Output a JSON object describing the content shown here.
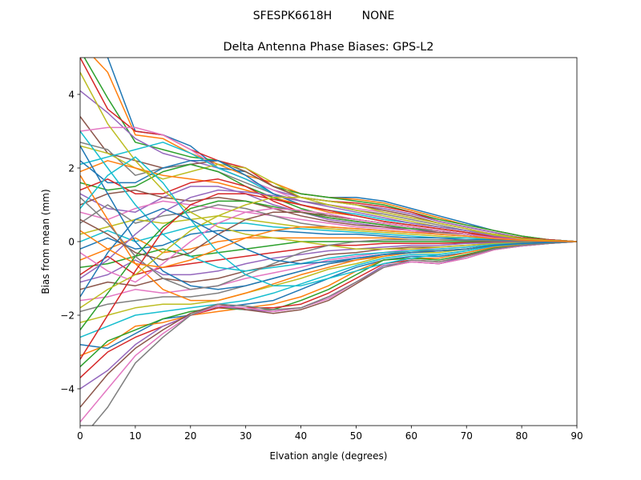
{
  "figure": {
    "suptitle_left": "SFESPK6618H",
    "suptitle_right": "NONE"
  },
  "chart_data": {
    "type": "line",
    "title": "Delta Antenna Phase Biases: GPS-L2",
    "xlabel": "Elvation angle (degrees)",
    "ylabel": "Bias from mean (mm)",
    "xlim": [
      0,
      90
    ],
    "ylim": [
      -5,
      5
    ],
    "xticks": [
      "0",
      "10",
      "20",
      "30",
      "40",
      "50",
      "60",
      "70",
      "80",
      "90"
    ],
    "yticks": [
      "−4",
      "−2",
      "0",
      "2",
      "4"
    ],
    "grid": false,
    "legend": "none",
    "x": [
      0,
      5,
      10,
      15,
      20,
      25,
      30,
      35,
      40,
      45,
      50,
      55,
      60,
      65,
      70,
      75,
      80,
      85,
      90
    ],
    "colors": [
      "#1f77b4",
      "#ff7f0e",
      "#2ca02c",
      "#d62728",
      "#9467bd",
      "#8c564b",
      "#e377c2",
      "#7f7f7f",
      "#bcbd22",
      "#17becf"
    ],
    "series": [
      {
        "values": [
          5.6,
          5.0,
          3.0,
          2.9,
          2.6,
          2.0,
          1.9,
          1.5,
          1.3,
          1.2,
          1.2,
          1.1,
          0.9,
          0.7,
          0.5,
          0.3,
          0.15,
          0.05,
          0
        ]
      },
      {
        "values": [
          5.4,
          4.6,
          2.9,
          2.8,
          2.4,
          2.1,
          1.8,
          1.6,
          1.3,
          1.2,
          1.15,
          1.05,
          0.85,
          0.65,
          0.45,
          0.3,
          0.15,
          0.05,
          0
        ]
      },
      {
        "values": [
          5.2,
          3.9,
          2.7,
          2.5,
          2.3,
          2.2,
          1.9,
          1.5,
          1.3,
          1.2,
          1.1,
          1.0,
          0.8,
          0.6,
          0.45,
          0.3,
          0.15,
          0.05,
          0
        ]
      },
      {
        "values": [
          5.0,
          3.6,
          3.0,
          2.9,
          2.5,
          2.2,
          2.0,
          1.5,
          1.2,
          1.1,
          1.05,
          0.95,
          0.8,
          0.55,
          0.4,
          0.25,
          0.1,
          0.05,
          0
        ]
      },
      {
        "values": [
          4.1,
          3.5,
          2.8,
          2.4,
          2.2,
          2.0,
          1.7,
          1.4,
          1.2,
          1.1,
          1.0,
          0.9,
          0.75,
          0.55,
          0.4,
          0.25,
          0.1,
          0.05,
          0
        ]
      },
      {
        "values": [
          3.4,
          2.4,
          2.2,
          2.0,
          2.1,
          2.2,
          1.9,
          1.5,
          1.2,
          1.1,
          1.0,
          0.85,
          0.7,
          0.5,
          0.35,
          0.2,
          0.1,
          0.05,
          0
        ]
      },
      {
        "values": [
          3.0,
          3.1,
          3.1,
          2.9,
          2.5,
          2.0,
          1.7,
          1.4,
          1.1,
          1.0,
          0.9,
          0.8,
          0.65,
          0.5,
          0.35,
          0.2,
          0.1,
          0.05,
          0
        ]
      },
      {
        "values": [
          2.7,
          2.5,
          1.8,
          2.0,
          2.1,
          1.9,
          1.6,
          1.3,
          1.1,
          1.0,
          0.85,
          0.75,
          0.6,
          0.45,
          0.3,
          0.2,
          0.1,
          0.05,
          0
        ]
      },
      {
        "values": [
          2.6,
          2.4,
          2.0,
          1.7,
          1.9,
          2.1,
          2.0,
          1.6,
          1.2,
          1.0,
          0.85,
          0.7,
          0.55,
          0.4,
          0.3,
          0.2,
          0.1,
          0.05,
          0
        ]
      },
      {
        "values": [
          2.1,
          2.3,
          2.5,
          2.7,
          2.4,
          2.0,
          1.7,
          1.3,
          1.0,
          0.85,
          0.75,
          0.6,
          0.5,
          0.4,
          0.3,
          0.15,
          0.1,
          0.05,
          0
        ]
      },
      {
        "values": [
          2.2,
          1.6,
          1.6,
          2.0,
          2.2,
          2.2,
          1.8,
          1.3,
          1.0,
          0.8,
          0.7,
          0.55,
          0.45,
          0.35,
          0.25,
          0.15,
          0.1,
          0.05,
          0
        ]
      },
      {
        "values": [
          1.9,
          2.2,
          2.0,
          1.8,
          1.7,
          1.6,
          1.4,
          1.2,
          1.0,
          0.8,
          0.7,
          0.55,
          0.45,
          0.35,
          0.25,
          0.15,
          0.1,
          0.05,
          0
        ]
      },
      {
        "values": [
          1.6,
          1.4,
          1.5,
          1.9,
          2.1,
          1.9,
          1.5,
          1.2,
          0.9,
          0.7,
          0.6,
          0.5,
          0.4,
          0.3,
          0.2,
          0.15,
          0.1,
          0.05,
          0
        ]
      },
      {
        "values": [
          1.4,
          1.7,
          1.3,
          1.3,
          1.6,
          1.7,
          1.5,
          1.1,
          0.8,
          0.65,
          0.55,
          0.45,
          0.35,
          0.3,
          0.2,
          0.15,
          0.1,
          0.05,
          0
        ]
      },
      {
        "values": [
          1.3,
          0.9,
          0.8,
          1.2,
          1.5,
          1.5,
          1.3,
          1.0,
          0.8,
          0.6,
          0.5,
          0.4,
          0.35,
          0.25,
          0.2,
          0.1,
          0.05,
          0.02,
          0
        ]
      },
      {
        "values": [
          1.0,
          1.3,
          1.4,
          1.2,
          1.1,
          1.2,
          1.1,
          0.9,
          0.7,
          0.55,
          0.45,
          0.4,
          0.3,
          0.25,
          0.2,
          0.1,
          0.05,
          0.02,
          0
        ]
      },
      {
        "values": [
          0.8,
          0.6,
          0.9,
          1.1,
          1.0,
          0.9,
          0.8,
          0.7,
          0.6,
          0.5,
          0.4,
          0.35,
          0.3,
          0.2,
          0.15,
          0.1,
          0.05,
          0.02,
          0
        ]
      },
      {
        "values": [
          0.5,
          1.0,
          0.5,
          0.7,
          0.8,
          1.0,
          0.9,
          0.7,
          0.5,
          0.4,
          0.35,
          0.3,
          0.25,
          0.2,
          0.15,
          0.1,
          0.05,
          0.02,
          0
        ]
      },
      {
        "values": [
          0.2,
          0.4,
          0.6,
          0.5,
          0.6,
          0.7,
          0.6,
          0.5,
          0.4,
          0.35,
          0.3,
          0.25,
          0.2,
          0.15,
          0.1,
          0.08,
          0.05,
          0.02,
          0
        ]
      },
      {
        "values": [
          0.0,
          0.3,
          0.0,
          0.2,
          0.4,
          0.5,
          0.5,
          0.4,
          0.35,
          0.3,
          0.25,
          0.2,
          0.15,
          0.1,
          0.1,
          0.05,
          0.03,
          0.01,
          0
        ]
      },
      {
        "values": [
          -0.2,
          0.1,
          -0.2,
          -0.1,
          0.2,
          0.3,
          0.3,
          0.3,
          0.25,
          0.2,
          0.2,
          0.15,
          0.1,
          0.1,
          0.05,
          0.05,
          0.02,
          0.01,
          0
        ]
      },
      {
        "values": [
          -0.5,
          -0.2,
          0.1,
          -0.3,
          -0.2,
          0.0,
          0.1,
          0.1,
          0.1,
          0.1,
          0.1,
          0.1,
          0.05,
          0.05,
          0.03,
          0.02,
          0.01,
          0.0,
          0
        ]
      },
      {
        "values": [
          -0.7,
          -0.6,
          -0.4,
          -0.2,
          -0.4,
          -0.3,
          -0.2,
          -0.1,
          0.0,
          0.0,
          0.0,
          0.0,
          0.0,
          0.0,
          0.0,
          0.0,
          0.0,
          0.0,
          0
        ]
      },
      {
        "values": [
          -0.9,
          -0.4,
          -0.9,
          -0.7,
          -0.6,
          -0.5,
          -0.4,
          -0.3,
          -0.2,
          -0.1,
          -0.1,
          -0.05,
          -0.05,
          -0.05,
          -0.03,
          -0.02,
          -0.01,
          0.0,
          0
        ]
      },
      {
        "values": [
          -1.1,
          -0.9,
          -0.5,
          -0.9,
          -0.9,
          -0.8,
          -0.6,
          -0.45,
          -0.35,
          -0.25,
          -0.2,
          -0.15,
          -0.1,
          -0.1,
          -0.05,
          -0.03,
          -0.02,
          -0.01,
          0
        ]
      },
      {
        "values": [
          -1.3,
          -1.1,
          -1.2,
          -1.0,
          -1.1,
          -1.0,
          -0.8,
          -0.65,
          -0.5,
          -0.35,
          -0.3,
          -0.2,
          -0.15,
          -0.15,
          -0.1,
          -0.05,
          -0.03,
          -0.01,
          0
        ]
      },
      {
        "values": [
          -1.6,
          -1.5,
          -1.3,
          -1.4,
          -1.3,
          -1.2,
          -1.0,
          -0.85,
          -0.7,
          -0.5,
          -0.4,
          -0.3,
          -0.2,
          -0.2,
          -0.15,
          -0.08,
          -0.04,
          -0.02,
          0
        ]
      },
      {
        "values": [
          -1.9,
          -1.7,
          -1.6,
          -1.5,
          -1.5,
          -1.4,
          -1.2,
          -1.0,
          -0.8,
          -0.6,
          -0.5,
          -0.35,
          -0.25,
          -0.25,
          -0.2,
          -0.1,
          -0.05,
          -0.02,
          0
        ]
      },
      {
        "values": [
          -2.2,
          -2.0,
          -1.8,
          -1.7,
          -1.7,
          -1.6,
          -1.4,
          -1.2,
          -1.0,
          -0.75,
          -0.6,
          -0.4,
          -0.3,
          -0.3,
          -0.2,
          -0.1,
          -0.06,
          -0.02,
          0
        ]
      },
      {
        "values": [
          -2.6,
          -2.3,
          -2.0,
          -1.9,
          -1.8,
          -1.7,
          -1.6,
          -1.4,
          -1.15,
          -0.9,
          -0.65,
          -0.45,
          -0.35,
          -0.35,
          -0.25,
          -0.12,
          -0.07,
          -0.03,
          0
        ]
      },
      {
        "values": [
          -2.8,
          -2.9,
          -2.5,
          -2.1,
          -2.0,
          -1.8,
          -1.7,
          -1.6,
          -1.3,
          -1.0,
          -0.7,
          -0.5,
          -0.4,
          -0.4,
          -0.3,
          -0.15,
          -0.08,
          -0.03,
          0
        ]
      },
      {
        "values": [
          -3.1,
          -2.8,
          -2.3,
          -2.2,
          -2.0,
          -1.9,
          -1.8,
          -1.7,
          -1.5,
          -1.2,
          -0.8,
          -0.5,
          -0.45,
          -0.45,
          -0.3,
          -0.15,
          -0.08,
          -0.03,
          0
        ]
      },
      {
        "values": [
          -3.4,
          -2.7,
          -2.4,
          -2.1,
          -1.9,
          -1.8,
          -1.85,
          -1.85,
          -1.6,
          -1.3,
          -0.9,
          -0.5,
          -0.45,
          -0.5,
          -0.35,
          -0.18,
          -0.1,
          -0.04,
          0
        ]
      },
      {
        "values": [
          -3.7,
          -3.0,
          -2.6,
          -2.3,
          -2.0,
          -1.8,
          -1.8,
          -1.8,
          -1.7,
          -1.4,
          -1.0,
          -0.6,
          -0.5,
          -0.55,
          -0.38,
          -0.2,
          -0.1,
          -0.04,
          0
        ]
      },
      {
        "values": [
          -4.0,
          -3.5,
          -2.8,
          -2.3,
          -2.0,
          -1.75,
          -1.85,
          -1.9,
          -1.8,
          -1.5,
          -1.1,
          -0.65,
          -0.55,
          -0.6,
          -0.4,
          -0.2,
          -0.12,
          -0.05,
          0
        ]
      },
      {
        "values": [
          -4.5,
          -3.6,
          -2.9,
          -2.4,
          -1.95,
          -1.7,
          -1.85,
          -1.95,
          -1.85,
          -1.6,
          -1.15,
          -0.7,
          -0.55,
          -0.6,
          -0.45,
          -0.22,
          -0.12,
          -0.05,
          0
        ]
      },
      {
        "values": [
          -4.9,
          -4.0,
          -3.1,
          -2.5,
          -2.0,
          -1.75,
          -1.8,
          -1.9,
          -1.8,
          -1.55,
          -1.1,
          -0.7,
          -0.55,
          -0.6,
          -0.45,
          -0.22,
          -0.12,
          -0.05,
          0
        ]
      },
      {
        "values": [
          -5.4,
          -4.5,
          -3.3,
          -2.6,
          -2.0,
          -1.7,
          -1.75,
          -1.85,
          -1.8,
          -1.5,
          -1.1,
          -0.7,
          -0.5,
          -0.55,
          -0.4,
          -0.2,
          -0.1,
          -0.05,
          0
        ]
      },
      {
        "values": [
          4.6,
          3.2,
          2.2,
          1.4,
          0.8,
          0.4,
          0.2,
          0.1,
          0.0,
          -0.1,
          -0.2,
          -0.2,
          -0.2,
          -0.15,
          -0.1,
          -0.05,
          -0.03,
          -0.01,
          0
        ]
      },
      {
        "values": [
          3.0,
          2.0,
          1.0,
          0.2,
          -0.4,
          -0.7,
          -0.8,
          -0.7,
          -0.6,
          -0.45,
          -0.35,
          -0.3,
          -0.25,
          -0.2,
          -0.15,
          -0.08,
          -0.04,
          -0.02,
          0
        ]
      },
      {
        "values": [
          2.6,
          1.3,
          0.0,
          -0.8,
          -1.2,
          -1.3,
          -1.2,
          -1.0,
          -0.8,
          -0.6,
          -0.45,
          -0.35,
          -0.3,
          -0.25,
          -0.2,
          -0.1,
          -0.05,
          -0.02,
          0
        ]
      },
      {
        "values": [
          1.8,
          0.6,
          -0.6,
          -1.3,
          -1.6,
          -1.6,
          -1.4,
          -1.15,
          -0.9,
          -0.7,
          -0.5,
          -0.4,
          -0.3,
          -0.25,
          -0.2,
          -0.1,
          -0.05,
          -0.02,
          0
        ]
      },
      {
        "values": [
          -2.4,
          -1.4,
          -0.4,
          0.4,
          0.9,
          1.1,
          1.1,
          0.95,
          0.8,
          0.65,
          0.55,
          0.45,
          0.35,
          0.3,
          0.2,
          0.1,
          0.05,
          0.02,
          0
        ]
      },
      {
        "values": [
          -3.2,
          -2.0,
          -0.8,
          0.3,
          1.0,
          1.3,
          1.3,
          1.15,
          1.0,
          0.85,
          0.7,
          0.55,
          0.45,
          0.35,
          0.25,
          0.12,
          0.06,
          0.02,
          0
        ]
      },
      {
        "values": [
          -1.0,
          -0.5,
          0.2,
          0.8,
          1.2,
          1.4,
          1.35,
          1.25,
          1.1,
          0.95,
          0.8,
          0.65,
          0.5,
          0.4,
          0.3,
          0.15,
          0.08,
          0.03,
          0
        ]
      },
      {
        "values": [
          0.6,
          0.2,
          -0.3,
          -0.5,
          -0.3,
          0.2,
          0.6,
          0.8,
          0.8,
          0.7,
          0.6,
          0.5,
          0.4,
          0.3,
          0.2,
          0.1,
          0.05,
          0.02,
          0
        ]
      },
      {
        "values": [
          -0.3,
          -0.8,
          -1.1,
          -0.6,
          0.0,
          0.5,
          0.8,
          0.9,
          0.85,
          0.75,
          0.6,
          0.5,
          0.4,
          0.3,
          0.2,
          0.1,
          0.05,
          0.02,
          0
        ]
      },
      {
        "values": [
          1.2,
          0.5,
          -0.4,
          -1.0,
          -1.3,
          -1.2,
          -0.9,
          -0.6,
          -0.3,
          -0.1,
          0.0,
          0.05,
          0.05,
          0.05,
          0.03,
          0.02,
          0.01,
          0.0,
          0
        ]
      },
      {
        "values": [
          -1.8,
          -1.3,
          -0.9,
          -0.3,
          0.3,
          0.7,
          1.0,
          1.2,
          1.2,
          1.1,
          1.0,
          0.8,
          0.65,
          0.5,
          0.35,
          0.18,
          0.08,
          0.03,
          0
        ]
      },
      {
        "values": [
          0.9,
          1.8,
          2.3,
          1.6,
          0.6,
          -0.3,
          -0.9,
          -1.2,
          -1.2,
          -1.0,
          -0.8,
          -0.6,
          -0.45,
          -0.35,
          -0.25,
          -0.12,
          -0.06,
          -0.02,
          0
        ]
      },
      {
        "values": [
          -1.5,
          -0.3,
          0.6,
          0.9,
          0.6,
          0.2,
          -0.2,
          -0.5,
          -0.6,
          -0.55,
          -0.45,
          -0.35,
          -0.3,
          -0.25,
          -0.2,
          -0.1,
          -0.05,
          -0.02,
          0
        ]
      },
      {
        "values": [
          0.3,
          -0.2,
          -0.6,
          -0.7,
          -0.5,
          -0.2,
          0.1,
          0.3,
          0.4,
          0.4,
          0.35,
          0.3,
          0.25,
          0.2,
          0.15,
          0.08,
          0.04,
          0.01,
          0
        ]
      }
    ]
  }
}
